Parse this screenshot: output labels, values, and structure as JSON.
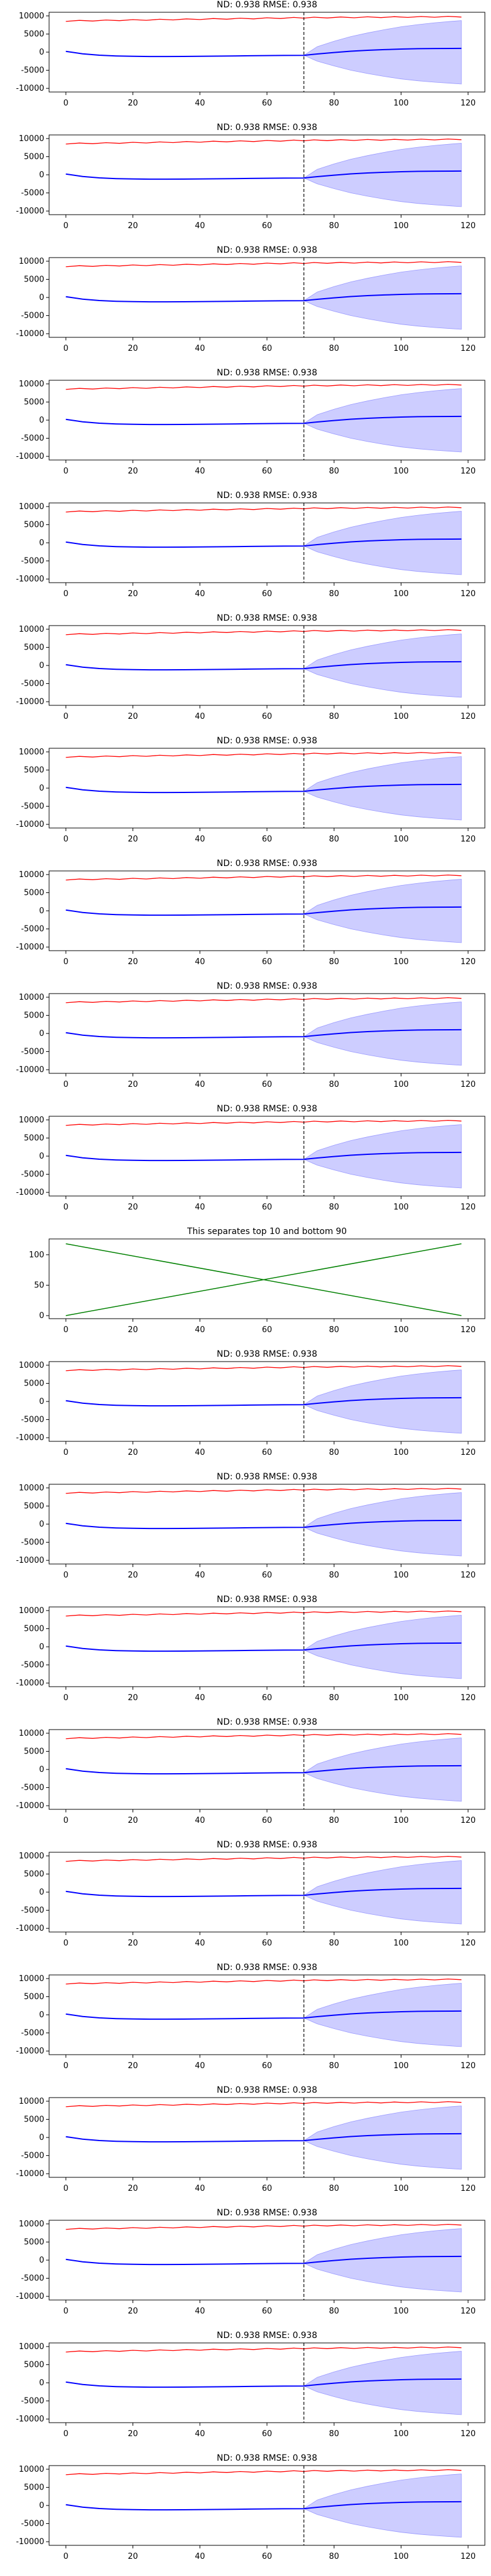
{
  "colors": {
    "observed": "#ff0000",
    "mean": "#0000ff",
    "band_fill": "#c8c8ff",
    "band_edge": "#9999ff",
    "split_line": "#000000",
    "cross": "#008000",
    "axes": "#000000"
  },
  "chart_data": [
    {
      "index": 0,
      "type": "line",
      "title": "ND:  0.938 RMSE:  0.938",
      "xlim": [
        -5,
        125
      ],
      "ylim": [
        -11000,
        11000
      ],
      "xticks": [
        "0",
        "20",
        "40",
        "60",
        "80",
        "100",
        "120"
      ],
      "yticks": [
        "-10000",
        "-5000",
        "0",
        "5000",
        "10000"
      ],
      "split_x": 71
    },
    {
      "index": 1,
      "type": "line",
      "title": "ND:  0.938 RMSE:  0.938",
      "xlim": [
        -5,
        125
      ],
      "ylim": [
        -11000,
        11000
      ],
      "xticks": [
        "0",
        "20",
        "40",
        "60",
        "80",
        "100",
        "120"
      ],
      "yticks": [
        "-10000",
        "-5000",
        "0",
        "5000",
        "10000"
      ],
      "split_x": 71
    },
    {
      "index": 2,
      "type": "line",
      "title": "ND:  0.938 RMSE:  0.938",
      "xlim": [
        -5,
        125
      ],
      "ylim": [
        -11000,
        11000
      ],
      "xticks": [
        "0",
        "20",
        "40",
        "60",
        "80",
        "100",
        "120"
      ],
      "yticks": [
        "-10000",
        "-5000",
        "0",
        "5000",
        "10000"
      ],
      "split_x": 71
    },
    {
      "index": 3,
      "type": "line",
      "title": "ND:  0.938 RMSE:  0.938",
      "xlim": [
        -5,
        125
      ],
      "ylim": [
        -11000,
        11000
      ],
      "xticks": [
        "0",
        "20",
        "40",
        "60",
        "80",
        "100",
        "120"
      ],
      "yticks": [
        "-10000",
        "-5000",
        "0",
        "5000",
        "10000"
      ],
      "split_x": 71
    },
    {
      "index": 4,
      "type": "line",
      "title": "ND:  0.938 RMSE:  0.938",
      "xlim": [
        -5,
        125
      ],
      "ylim": [
        -11000,
        11000
      ],
      "xticks": [
        "0",
        "20",
        "40",
        "60",
        "80",
        "100",
        "120"
      ],
      "yticks": [
        "-10000",
        "-5000",
        "0",
        "5000",
        "10000"
      ],
      "split_x": 71
    },
    {
      "index": 5,
      "type": "line",
      "title": "ND:  0.938 RMSE:  0.938",
      "xlim": [
        -5,
        125
      ],
      "ylim": [
        -11000,
        11000
      ],
      "xticks": [
        "0",
        "20",
        "40",
        "60",
        "80",
        "100",
        "120"
      ],
      "yticks": [
        "-10000",
        "-5000",
        "0",
        "5000",
        "10000"
      ],
      "split_x": 71
    },
    {
      "index": 6,
      "type": "line",
      "title": "ND:  0.938 RMSE:  0.938",
      "xlim": [
        -5,
        125
      ],
      "ylim": [
        -11000,
        11000
      ],
      "xticks": [
        "0",
        "20",
        "40",
        "60",
        "80",
        "100",
        "120"
      ],
      "yticks": [
        "-10000",
        "-5000",
        "0",
        "5000",
        "10000"
      ],
      "split_x": 71
    },
    {
      "index": 7,
      "type": "line",
      "title": "ND:  0.938 RMSE:  0.938",
      "xlim": [
        -5,
        125
      ],
      "ylim": [
        -11000,
        11000
      ],
      "xticks": [
        "0",
        "20",
        "40",
        "60",
        "80",
        "100",
        "120"
      ],
      "yticks": [
        "-10000",
        "-5000",
        "0",
        "5000",
        "10000"
      ],
      "split_x": 71
    },
    {
      "index": 8,
      "type": "line",
      "title": "ND:  0.938 RMSE:  0.938",
      "xlim": [
        -5,
        125
      ],
      "ylim": [
        -11000,
        11000
      ],
      "xticks": [
        "0",
        "20",
        "40",
        "60",
        "80",
        "100",
        "120"
      ],
      "yticks": [
        "-10000",
        "-5000",
        "0",
        "5000",
        "10000"
      ],
      "split_x": 71
    },
    {
      "index": 9,
      "type": "line",
      "title": "ND:  0.938 RMSE:  0.938",
      "xlim": [
        -5,
        125
      ],
      "ylim": [
        -11000,
        11000
      ],
      "xticks": [
        "0",
        "20",
        "40",
        "60",
        "80",
        "100",
        "120"
      ],
      "yticks": [
        "-10000",
        "-5000",
        "0",
        "5000",
        "10000"
      ],
      "split_x": 71
    },
    {
      "index": 10,
      "type": "line",
      "title": "This separates top 10 and bottom 90",
      "xlim": [
        -5,
        125
      ],
      "ylim": [
        -5,
        126
      ],
      "xticks": [
        "0",
        "20",
        "40",
        "60",
        "80",
        "100",
        "120"
      ],
      "yticks": [
        "0",
        "50",
        "100"
      ],
      "series": [
        {
          "x": [
            0,
            118
          ],
          "y": [
            0,
            118
          ]
        },
        {
          "x": [
            0,
            118
          ],
          "y": [
            118,
            0
          ]
        }
      ]
    },
    {
      "index": 11,
      "type": "line",
      "title": "ND:  0.938 RMSE:  0.938",
      "xlim": [
        -5,
        125
      ],
      "ylim": [
        -11000,
        11000
      ],
      "xticks": [
        "0",
        "20",
        "40",
        "60",
        "80",
        "100",
        "120"
      ],
      "yticks": [
        "-10000",
        "-5000",
        "0",
        "5000",
        "10000"
      ],
      "split_x": 71
    },
    {
      "index": 12,
      "type": "line",
      "title": "ND:  0.938 RMSE:  0.938",
      "xlim": [
        -5,
        125
      ],
      "ylim": [
        -11000,
        11000
      ],
      "xticks": [
        "0",
        "20",
        "40",
        "60",
        "80",
        "100",
        "120"
      ],
      "yticks": [
        "-10000",
        "-5000",
        "0",
        "5000",
        "10000"
      ],
      "split_x": 71
    },
    {
      "index": 13,
      "type": "line",
      "title": "ND:  0.938 RMSE:  0.938",
      "xlim": [
        -5,
        125
      ],
      "ylim": [
        -11000,
        11000
      ],
      "xticks": [
        "0",
        "20",
        "40",
        "60",
        "80",
        "100",
        "120"
      ],
      "yticks": [
        "-10000",
        "-5000",
        "0",
        "5000",
        "10000"
      ],
      "split_x": 71
    },
    {
      "index": 14,
      "type": "line",
      "title": "ND:  0.938 RMSE:  0.938",
      "xlim": [
        -5,
        125
      ],
      "ylim": [
        -11000,
        11000
      ],
      "xticks": [
        "0",
        "20",
        "40",
        "60",
        "80",
        "100",
        "120"
      ],
      "yticks": [
        "-10000",
        "-5000",
        "0",
        "5000",
        "10000"
      ],
      "split_x": 71
    },
    {
      "index": 15,
      "type": "line",
      "title": "ND:  0.938 RMSE:  0.938",
      "xlim": [
        -5,
        125
      ],
      "ylim": [
        -11000,
        11000
      ],
      "xticks": [
        "0",
        "20",
        "40",
        "60",
        "80",
        "100",
        "120"
      ],
      "yticks": [
        "-10000",
        "-5000",
        "0",
        "5000",
        "10000"
      ],
      "split_x": 71
    },
    {
      "index": 16,
      "type": "line",
      "title": "ND:  0.938 RMSE:  0.938",
      "xlim": [
        -5,
        125
      ],
      "ylim": [
        -11000,
        11000
      ],
      "xticks": [
        "0",
        "20",
        "40",
        "60",
        "80",
        "100",
        "120"
      ],
      "yticks": [
        "-10000",
        "-5000",
        "0",
        "5000",
        "10000"
      ],
      "split_x": 71
    },
    {
      "index": 17,
      "type": "line",
      "title": "ND:  0.938 RMSE:  0.938",
      "xlim": [
        -5,
        125
      ],
      "ylim": [
        -11000,
        11000
      ],
      "xticks": [
        "0",
        "20",
        "40",
        "60",
        "80",
        "100",
        "120"
      ],
      "yticks": [
        "-10000",
        "-5000",
        "0",
        "5000",
        "10000"
      ],
      "split_x": 71
    },
    {
      "index": 18,
      "type": "line",
      "title": "ND:  0.938 RMSE:  0.938",
      "xlim": [
        -5,
        125
      ],
      "ylim": [
        -11000,
        11000
      ],
      "xticks": [
        "0",
        "20",
        "40",
        "60",
        "80",
        "100",
        "120"
      ],
      "yticks": [
        "-10000",
        "-5000",
        "0",
        "5000",
        "10000"
      ],
      "split_x": 71
    },
    {
      "index": 19,
      "type": "line",
      "title": "ND:  0.938 RMSE:  0.938",
      "xlim": [
        -5,
        125
      ],
      "ylim": [
        -11000,
        11000
      ],
      "xticks": [
        "0",
        "20",
        "40",
        "60",
        "80",
        "100",
        "120"
      ],
      "yticks": [
        "-10000",
        "-5000",
        "0",
        "5000",
        "10000"
      ],
      "split_x": 71
    },
    {
      "index": 20,
      "type": "line",
      "title": "ND:  0.938 RMSE:  0.938",
      "xlim": [
        -5,
        125
      ],
      "ylim": [
        -11000,
        11000
      ],
      "xticks": [
        "0",
        "20",
        "40",
        "60",
        "80",
        "100",
        "120"
      ],
      "yticks": [
        "-10000",
        "-5000",
        "0",
        "5000",
        "10000"
      ],
      "split_x": 71
    }
  ],
  "shared_series": {
    "observed": {
      "x": [
        0,
        4,
        8,
        12,
        16,
        20,
        24,
        28,
        32,
        36,
        40,
        44,
        48,
        52,
        56,
        60,
        64,
        68,
        71,
        74,
        78,
        82,
        86,
        90,
        94,
        98,
        102,
        106,
        110,
        114,
        118
      ],
      "y": [
        8600,
        8650,
        8700,
        8750,
        8800,
        8850,
        8900,
        8950,
        9000,
        9050,
        9100,
        9150,
        9200,
        9250,
        9300,
        9350,
        9400,
        9450,
        9500,
        9520,
        9550,
        9580,
        9600,
        9620,
        9650,
        9670,
        9700,
        9720,
        9750,
        9770,
        9800
      ]
    },
    "mean": {
      "x": [
        0,
        5,
        10,
        15,
        20,
        25,
        30,
        35,
        40,
        45,
        50,
        55,
        60,
        65,
        71,
        75,
        80,
        85,
        90,
        95,
        100,
        105,
        110,
        115,
        118
      ],
      "y": [
        200,
        -450,
        -850,
        -1050,
        -1150,
        -1200,
        -1200,
        -1180,
        -1150,
        -1100,
        -1050,
        -1000,
        -950,
        -920,
        -880,
        -500,
        -100,
        250,
        500,
        700,
        850,
        950,
        1000,
        1020,
        1030
      ]
    },
    "band": {
      "x": [
        71,
        75,
        80,
        85,
        90,
        95,
        100,
        105,
        110,
        115,
        118
      ],
      "upper": [
        -880,
        1500,
        3000,
        4300,
        5300,
        6200,
        7000,
        7600,
        8100,
        8500,
        8700
      ],
      "lower": [
        -880,
        -2500,
        -3800,
        -5000,
        -5900,
        -6700,
        -7400,
        -7900,
        -8300,
        -8600,
        -8800
      ]
    }
  }
}
